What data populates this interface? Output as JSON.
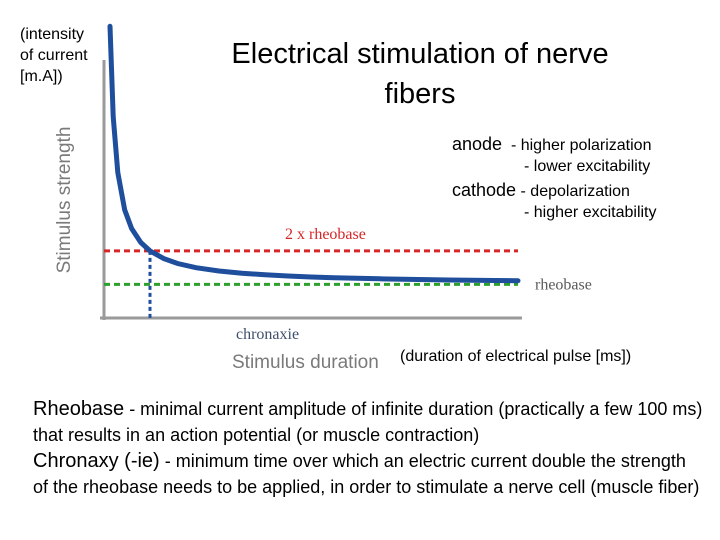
{
  "intensity_note": "(intensity\nof current\n[m.A])",
  "title": "Electrical stimulation of nerve fibers",
  "legend": [
    {
      "term": "anode",
      "lines": [
        "- higher polarization",
        "- lower excitability"
      ]
    },
    {
      "term": "cathode",
      "lines": [
        "- depolarization",
        "- higher excitability"
      ]
    }
  ],
  "duration_note": "(duration of electrical pulse [ms])",
  "notes": [
    {
      "term": "Rheobase",
      "text": " - minimal current amplitude of infinite duration (practically a few 100 ms) that results in an action potential (or muscle contraction)"
    },
    {
      "term": "Chronaxy (-ie)",
      "text": " - minimum time over which an electric current double the strength of the rheobase needs to be applied, in order to stimulate a nerve cell (muscle fiber)"
    }
  ],
  "chart_data": {
    "type": "line",
    "xlabel": "Stimulus duration",
    "ylabel": "Stimulus strength",
    "rheobase": 1,
    "chronaxie": 1,
    "series": [
      {
        "x": [
          0.13,
          0.2,
          0.3,
          0.45,
          0.6,
          0.8,
          1,
          1.3,
          1.6,
          2,
          2.5,
          3,
          3.5,
          4,
          4.5,
          5,
          5.5,
          6,
          6.5,
          7,
          7.5,
          8,
          8.5,
          9
        ],
        "color": "#1f4e9c"
      }
    ],
    "reference_lines": [
      {
        "label": "2 x rheobase",
        "y": 2,
        "color": "#d62728"
      },
      {
        "label": "rheobase",
        "y": 1,
        "color": "#2ca02c"
      }
    ],
    "chronaxie_label": "chronaxie",
    "xlim": [
      0,
      9
    ],
    "ylim": [
      0,
      8.7
    ],
    "grid": false
  }
}
